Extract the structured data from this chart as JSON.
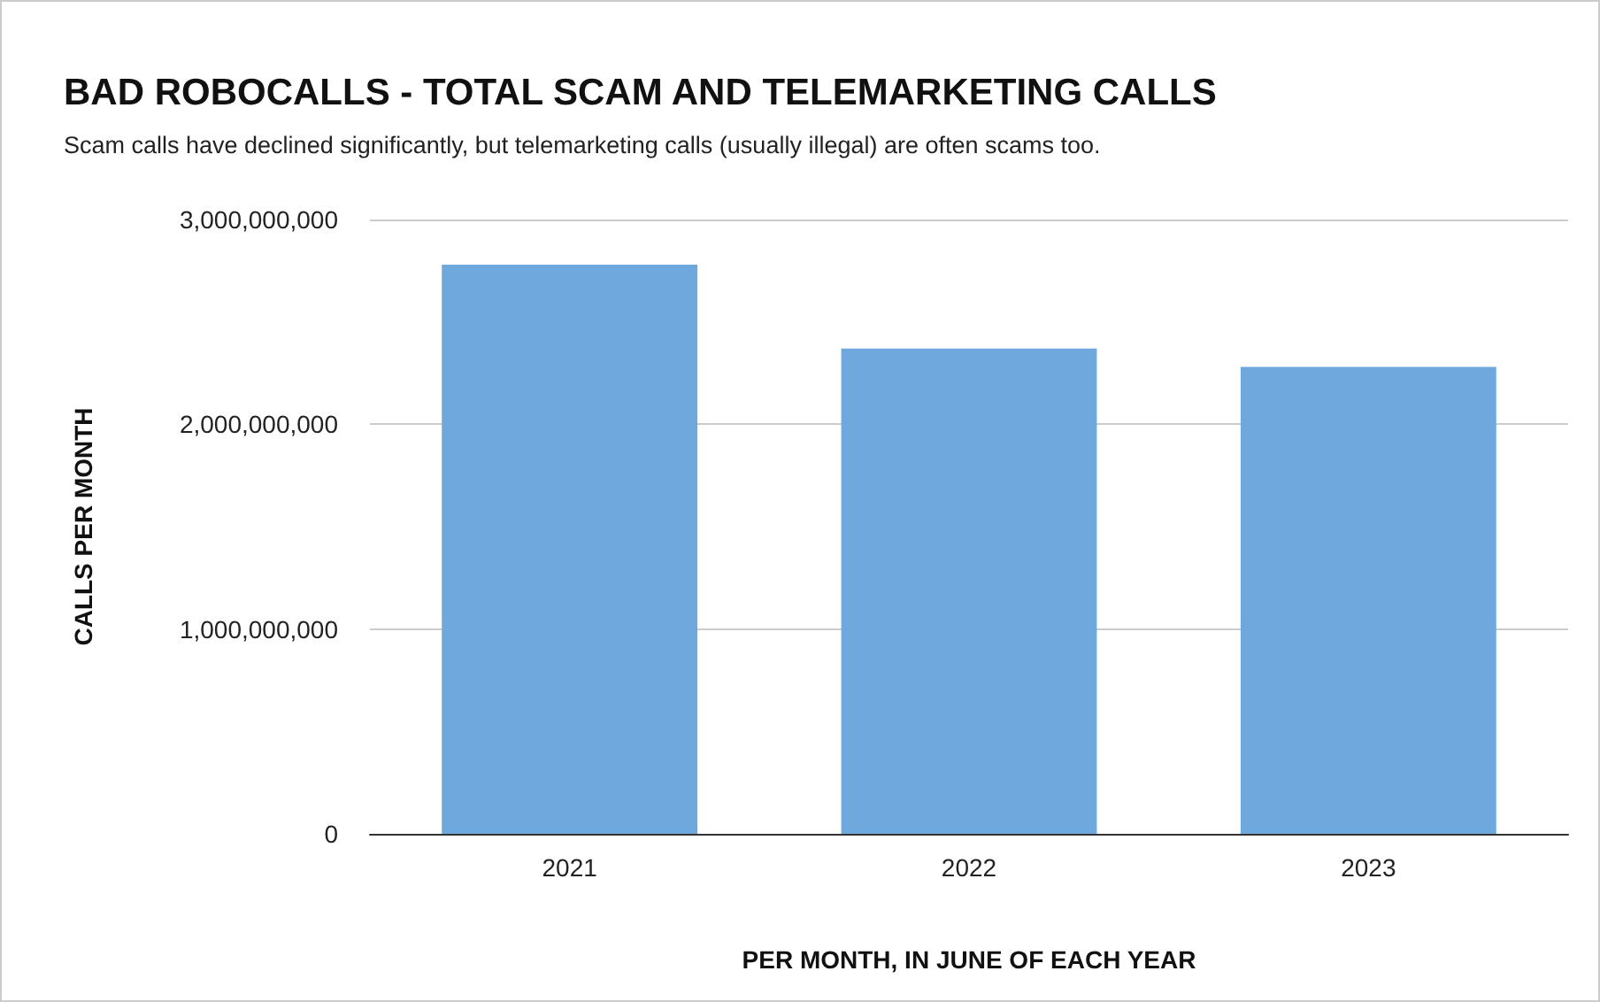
{
  "chart_data": {
    "type": "bar",
    "title": "BAD ROBOCALLS - TOTAL SCAM AND TELEMARKETING CALLS",
    "subtitle": "Scam calls have declined significantly, but telemarketing calls (usually illegal) are often scams too.",
    "xlabel": "PER MONTH, IN JUNE OF EACH YEAR",
    "ylabel": "CALLS PER MONTH",
    "categories": [
      "2021",
      "2022",
      "2023"
    ],
    "values": [
      2780000000,
      2370000000,
      2280000000
    ],
    "color": "#6fa8dc",
    "ylim": [
      0,
      3000000000
    ],
    "yticks": [
      {
        "value": 0,
        "label": "0"
      },
      {
        "value": 1000000000,
        "label": "1,000,000,000"
      },
      {
        "value": 2000000000,
        "label": "2,000,000,000"
      },
      {
        "value": 3000000000,
        "label": "3,000,000,000"
      }
    ],
    "grid": "y"
  }
}
